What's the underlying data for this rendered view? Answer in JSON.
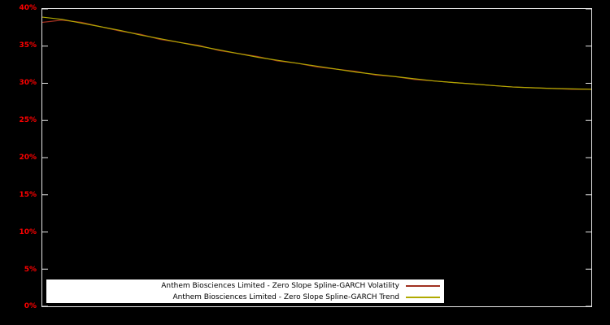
{
  "colors": {
    "background": "#000000",
    "axis": "#e6e6e6",
    "tick_label": "#ff0000",
    "legend_bg": "#ffffff",
    "legend_text": "#000000"
  },
  "chart_data": {
    "type": "line",
    "title": "",
    "xlabel": "",
    "ylabel": "",
    "ylim": [
      0,
      40
    ],
    "yticks": [
      "40%",
      "35%",
      "30%",
      "25%",
      "20%",
      "15%",
      "10%",
      "5%",
      "0%"
    ],
    "grid": false,
    "legend_position": "bottom-center",
    "series": [
      {
        "name": "Anthem Biosciences Limited - Zero Slope Spline-GARCH Volatility",
        "color": "#a03020",
        "values": [
          38.2,
          38.5,
          38.2,
          37.6,
          37.0,
          36.6,
          35.9,
          35.5,
          35.1,
          34.4,
          34.0,
          33.6,
          33.0,
          32.7,
          32.2,
          31.9,
          31.6,
          31.1,
          30.9,
          30.5,
          30.3,
          30.1,
          29.9,
          29.7,
          29.5,
          29.4,
          29.3,
          29.2,
          29.2
        ]
      },
      {
        "name": "Anthem Biosciences Limited - Zero Slope Spline-GARCH Trend",
        "color": "#b0aa00",
        "values": [
          38.9,
          38.6,
          38.1,
          37.6,
          37.1,
          36.5,
          36.0,
          35.5,
          35.0,
          34.5,
          34.0,
          33.5,
          33.1,
          32.7,
          32.3,
          31.9,
          31.5,
          31.2,
          30.9,
          30.6,
          30.3,
          30.1,
          29.9,
          29.7,
          29.5,
          29.4,
          29.3,
          29.25,
          29.2
        ]
      }
    ]
  }
}
